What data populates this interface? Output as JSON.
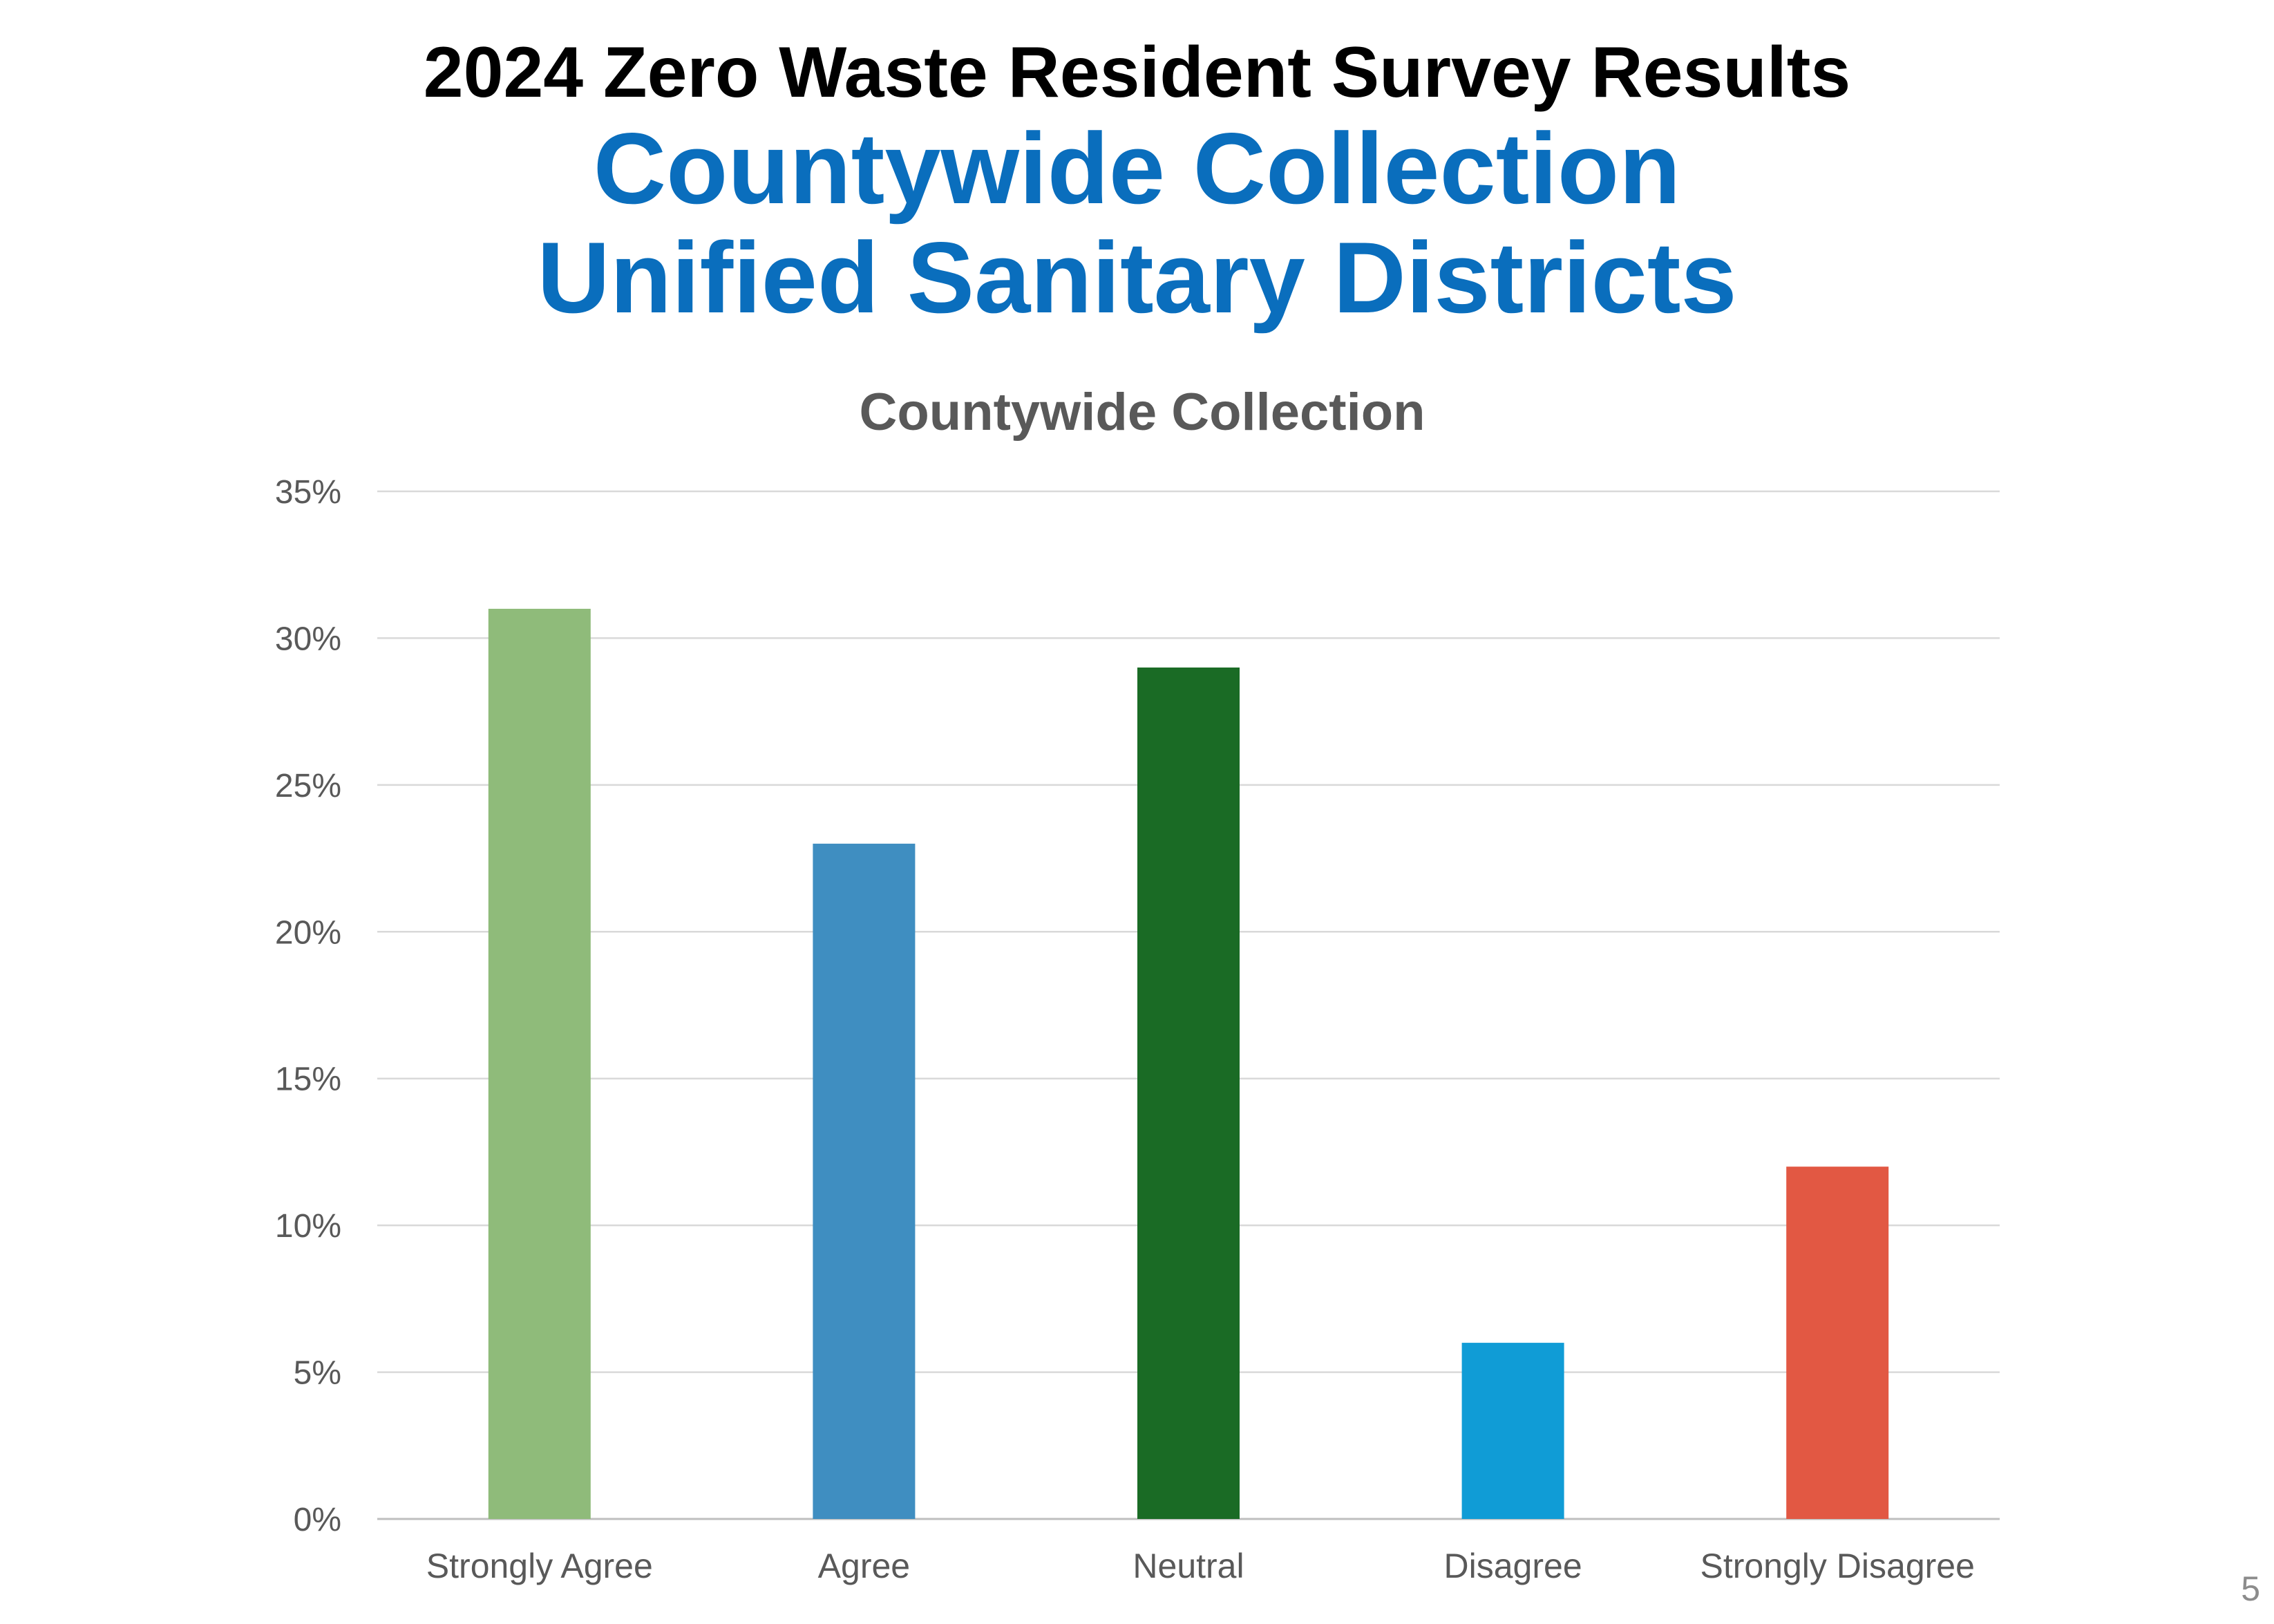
{
  "slide": {
    "title": "2024 Zero Waste Resident Survey Results",
    "subtitle_line1": "Countywide Collection",
    "subtitle_line2": "Unified Sanitary Districts",
    "subtitle_color": "#0A6EBD",
    "page_number": "5"
  },
  "chart_data": {
    "type": "bar",
    "title": "Countywide Collection",
    "categories": [
      "Strongly Agree",
      "Agree",
      "Neutral",
      "Disagree",
      "Strongly Disagree"
    ],
    "values": [
      31,
      23,
      29,
      6,
      12
    ],
    "colors": [
      "#8FBB7A",
      "#3F8EC1",
      "#1A6B25",
      "#109CD6",
      "#E25843"
    ],
    "ylim": [
      0,
      35
    ],
    "yticks": [
      0,
      5,
      10,
      15,
      20,
      25,
      30,
      35
    ],
    "ytick_labels": [
      "0%",
      "5%",
      "10%",
      "15%",
      "20%",
      "25%",
      "30%",
      "35%"
    ],
    "gridlines": true,
    "xlabel": "",
    "ylabel": ""
  }
}
